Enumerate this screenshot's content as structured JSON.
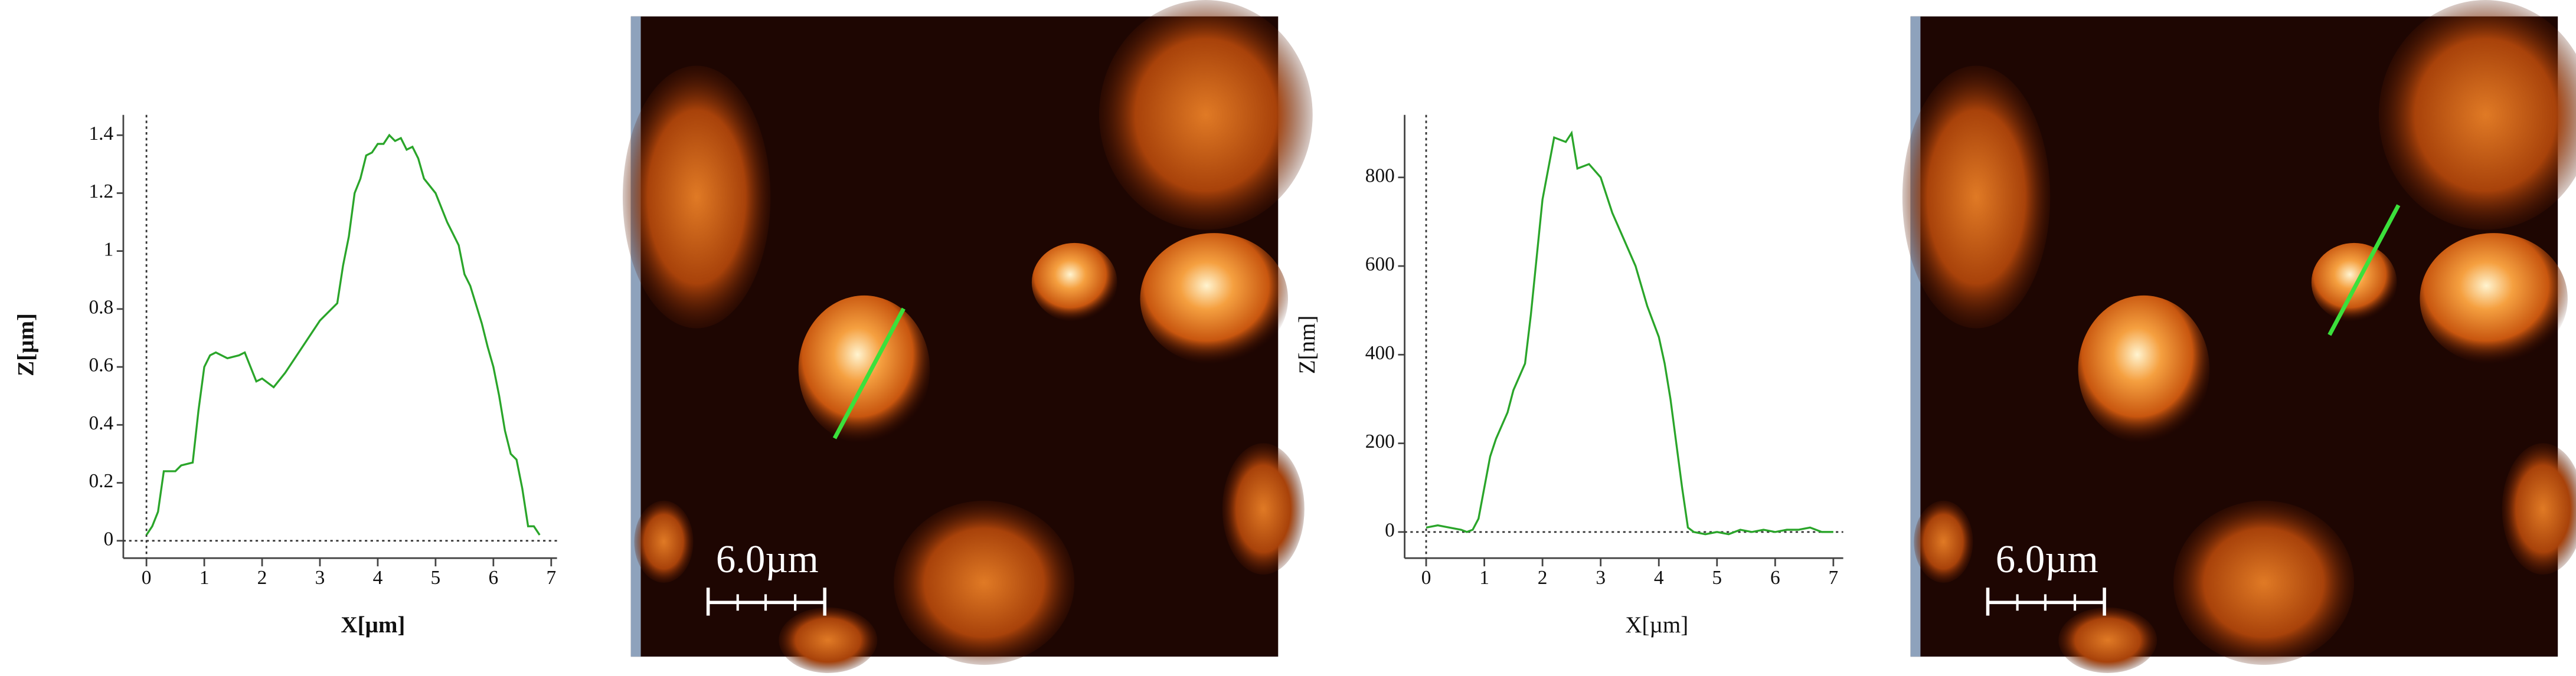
{
  "chart_data": [
    {
      "type": "line",
      "y_label": "Z[µm]",
      "x_label": "X[µm]",
      "axis_label_bold": true,
      "color": "#2aa52a",
      "x": [
        0,
        0.1,
        0.2,
        0.3,
        0.5,
        0.6,
        0.8,
        0.9,
        1.0,
        1.1,
        1.2,
        1.4,
        1.6,
        1.7,
        1.8,
        1.9,
        2.0,
        2.2,
        2.4,
        2.6,
        2.8,
        3.0,
        3.2,
        3.3,
        3.4,
        3.5,
        3.6,
        3.7,
        3.8,
        3.9,
        4.0,
        4.1,
        4.2,
        4.3,
        4.4,
        4.5,
        4.6,
        4.7,
        4.8,
        5.0,
        5.2,
        5.4,
        5.5,
        5.6,
        5.8,
        5.9,
        6.0,
        6.1,
        6.2,
        6.3,
        6.4,
        6.5,
        6.6,
        6.7,
        6.8
      ],
      "values": [
        0.02,
        0.05,
        0.1,
        0.24,
        0.24,
        0.26,
        0.27,
        0.45,
        0.6,
        0.64,
        0.65,
        0.63,
        0.64,
        0.65,
        0.6,
        0.55,
        0.56,
        0.53,
        0.58,
        0.64,
        0.7,
        0.76,
        0.8,
        0.82,
        0.95,
        1.05,
        1.2,
        1.25,
        1.33,
        1.34,
        1.37,
        1.37,
        1.4,
        1.38,
        1.39,
        1.35,
        1.36,
        1.32,
        1.25,
        1.2,
        1.1,
        1.02,
        0.92,
        0.88,
        0.75,
        0.67,
        0.6,
        0.5,
        0.38,
        0.3,
        0.28,
        0.18,
        0.05,
        0.05,
        0.02
      ],
      "xlim": [
        -0.4,
        7.1
      ],
      "ylim": [
        -0.06,
        1.47
      ],
      "xticks": [
        0,
        1,
        2,
        3,
        4,
        5,
        6,
        7
      ],
      "yticks": [
        0,
        0.2,
        0.4,
        0.6,
        0.8,
        1,
        1.2,
        1.4
      ]
    },
    {
      "type": "line",
      "y_label": "Z[nm]",
      "x_label": "X[µm]",
      "axis_label_bold": false,
      "color": "#2aa52a",
      "x": [
        0,
        0.2,
        0.4,
        0.6,
        0.7,
        0.8,
        0.9,
        1.0,
        1.1,
        1.2,
        1.4,
        1.5,
        1.7,
        1.8,
        1.9,
        2.0,
        2.1,
        2.2,
        2.4,
        2.5,
        2.6,
        2.8,
        3.0,
        3.2,
        3.4,
        3.6,
        3.8,
        4.0,
        4.1,
        4.2,
        4.3,
        4.4,
        4.5,
        4.6,
        4.8,
        5.0,
        5.2,
        5.4,
        5.6,
        5.8,
        6.0,
        6.2,
        6.4,
        6.6,
        6.8,
        7.0
      ],
      "values": [
        10,
        15,
        10,
        5,
        0,
        5,
        30,
        100,
        170,
        210,
        270,
        320,
        380,
        490,
        620,
        750,
        820,
        890,
        880,
        900,
        820,
        830,
        800,
        720,
        660,
        600,
        510,
        440,
        380,
        300,
        200,
        100,
        10,
        0,
        -5,
        0,
        -5,
        5,
        0,
        5,
        0,
        5,
        5,
        10,
        0,
        0
      ],
      "xlim": [
        -0.37,
        7.17
      ],
      "ylim": [
        -59,
        941
      ],
      "xticks": [
        0,
        1,
        2,
        3,
        4,
        5,
        6,
        7
      ],
      "yticks": [
        0,
        200,
        400,
        600,
        800
      ]
    }
  ],
  "images": [
    {
      "scale_bar": "6.0µm"
    },
    {
      "scale_bar": "6.0µm"
    }
  ]
}
